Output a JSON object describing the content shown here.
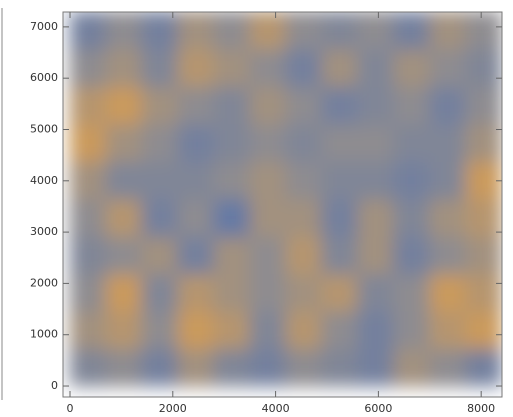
{
  "chart_data": {
    "type": "heatmap",
    "xlim": [
      -136,
      8405
    ],
    "ylim": [
      -214,
      7290
    ],
    "xticks": [
      0,
      2000,
      4000,
      6000,
      8000
    ],
    "yticks": [
      0,
      1000,
      2000,
      3000,
      4000,
      5000,
      6000,
      7000
    ],
    "x": [
      350,
      1050,
      1750,
      2450,
      3150,
      3850,
      4550,
      5250,
      5950,
      6650,
      7350,
      8050
    ],
    "y": [
      365,
      1095,
      1825,
      2555,
      3285,
      4015,
      4745,
      5475,
      6205,
      6935
    ],
    "z": [
      [
        0.4,
        0.5,
        0.3,
        0.6,
        0.4,
        0.3,
        0.5,
        0.4,
        0.3,
        0.6,
        0.5,
        0.3
      ],
      [
        0.6,
        0.7,
        0.5,
        0.8,
        0.7,
        0.4,
        0.7,
        0.5,
        0.3,
        0.5,
        0.7,
        0.8
      ],
      [
        0.5,
        0.8,
        0.4,
        0.7,
        0.6,
        0.5,
        0.6,
        0.7,
        0.4,
        0.5,
        0.8,
        0.7
      ],
      [
        0.4,
        0.5,
        0.6,
        0.3,
        0.6,
        0.5,
        0.7,
        0.4,
        0.6,
        0.3,
        0.5,
        0.6
      ],
      [
        0.5,
        0.7,
        0.3,
        0.5,
        0.2,
        0.6,
        0.6,
        0.3,
        0.6,
        0.4,
        0.6,
        0.7
      ],
      [
        0.6,
        0.4,
        0.4,
        0.4,
        0.5,
        0.6,
        0.5,
        0.4,
        0.4,
        0.3,
        0.4,
        0.8
      ],
      [
        0.8,
        0.6,
        0.5,
        0.3,
        0.4,
        0.5,
        0.4,
        0.5,
        0.5,
        0.4,
        0.4,
        0.6
      ],
      [
        0.7,
        0.8,
        0.6,
        0.5,
        0.4,
        0.6,
        0.5,
        0.3,
        0.4,
        0.5,
        0.3,
        0.5
      ],
      [
        0.5,
        0.6,
        0.4,
        0.7,
        0.6,
        0.5,
        0.3,
        0.6,
        0.4,
        0.6,
        0.5,
        0.4
      ],
      [
        0.3,
        0.5,
        0.3,
        0.6,
        0.5,
        0.7,
        0.5,
        0.4,
        0.5,
        0.3,
        0.6,
        0.5
      ]
    ],
    "colorscale": [
      "#4a6db3",
      "#8e8c90",
      "#f2a33a"
    ]
  }
}
